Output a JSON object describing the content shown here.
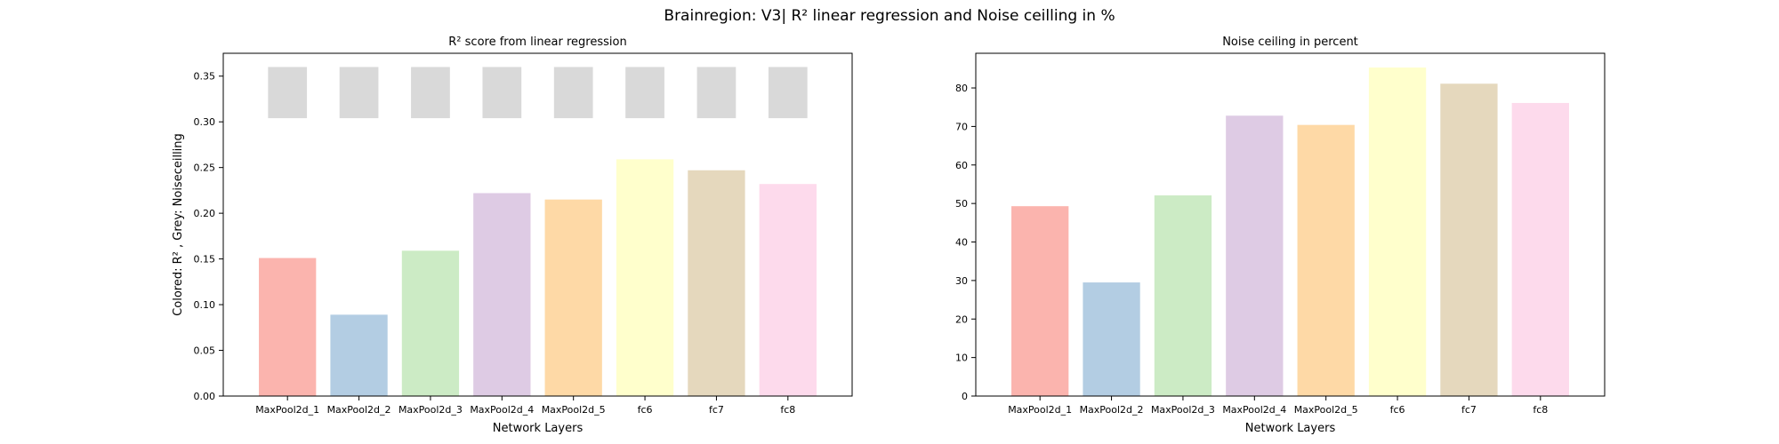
{
  "figure": {
    "title": "Brainregion: V3| R² linear regression and Noise ceilling in %"
  },
  "chart_data": [
    {
      "type": "bar",
      "title": "R² score from linear regression",
      "xlabel": "Network Layers",
      "ylabel": "Colored: R² , Grey: Noiseceilling",
      "categories": [
        "MaxPool2d_1",
        "MaxPool2d_2",
        "MaxPool2d_3",
        "MaxPool2d_4",
        "MaxPool2d_5",
        "fc6",
        "fc7",
        "fc8"
      ],
      "ylim": [
        0,
        0.375
      ],
      "yticks": [
        0.0,
        0.05,
        0.1,
        0.15,
        0.2,
        0.25,
        0.3,
        0.35
      ],
      "ytick_labels": [
        "0.00",
        "0.05",
        "0.10",
        "0.15",
        "0.20",
        "0.25",
        "0.30",
        "0.35"
      ],
      "series": [
        {
          "values": [
            0.151,
            0.089,
            0.159,
            0.222,
            0.215,
            0.259,
            0.247,
            0.232
          ],
          "colors": [
            "#fbb4ae",
            "#b3cde3",
            "#ccebc5",
            "#decbe4",
            "#fed9a6",
            "#ffffcc",
            "#e5d8bd",
            "#fddaec"
          ]
        },
        {
          "bottom": [
            0.304,
            0.304,
            0.304,
            0.304,
            0.304,
            0.304,
            0.304,
            0.304
          ],
          "top": [
            0.36,
            0.36,
            0.36,
            0.36,
            0.36,
            0.36,
            0.36,
            0.36
          ],
          "color": "#d9d9d9"
        }
      ],
      "grid": false
    },
    {
      "type": "bar",
      "title": "Noise ceiling in percent",
      "xlabel": "Network Layers",
      "ylabel": "",
      "categories": [
        "MaxPool2d_1",
        "MaxPool2d_2",
        "MaxPool2d_3",
        "MaxPool2d_4",
        "MaxPool2d_5",
        "fc6",
        "fc7",
        "fc8"
      ],
      "ylim": [
        0,
        89
      ],
      "yticks": [
        0,
        10,
        20,
        30,
        40,
        50,
        60,
        70,
        80
      ],
      "ytick_labels": [
        "0",
        "10",
        "20",
        "30",
        "40",
        "50",
        "60",
        "70",
        "80"
      ],
      "series": [
        {
          "values": [
            49.3,
            29.5,
            52.1,
            72.8,
            70.4,
            85.3,
            81.1,
            76.1
          ],
          "colors": [
            "#fbb4ae",
            "#b3cde3",
            "#ccebc5",
            "#decbe4",
            "#fed9a6",
            "#ffffcc",
            "#e5d8bd",
            "#fddaec"
          ]
        }
      ],
      "grid": false
    }
  ]
}
